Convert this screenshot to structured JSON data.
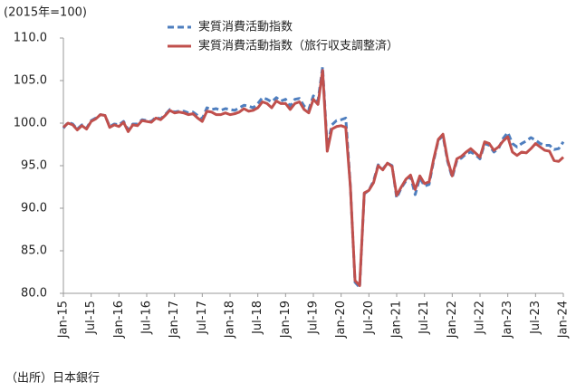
{
  "chart_data": {
    "type": "line",
    "unit_note": "(2015年=100)",
    "source": "（出所）日本銀行",
    "categories": [
      "Jan-15",
      null,
      null,
      null,
      null,
      null,
      "Jul-15",
      null,
      null,
      null,
      null,
      null,
      "Jan-16",
      null,
      null,
      null,
      null,
      null,
      "Jul-16",
      null,
      null,
      null,
      null,
      null,
      "Jan-17",
      null,
      null,
      null,
      null,
      null,
      "Jul-17",
      null,
      null,
      null,
      null,
      null,
      "Jan-18",
      null,
      null,
      null,
      null,
      null,
      "Jul-18",
      null,
      null,
      null,
      null,
      null,
      "Jan-19",
      null,
      null,
      null,
      null,
      null,
      "Jul-19",
      null,
      null,
      null,
      null,
      null,
      "Jan-20",
      null,
      null,
      null,
      null,
      null,
      "Jul-20",
      null,
      null,
      null,
      null,
      null,
      "Jan-21",
      null,
      null,
      null,
      null,
      null,
      "Jul-21",
      null,
      null,
      null,
      null,
      null,
      "Jan-22",
      null,
      null,
      null,
      null,
      null,
      "Jul-22",
      null,
      null,
      null,
      null,
      null,
      "Jan-23",
      null,
      null,
      null,
      null,
      null,
      "Jul-23",
      null,
      null,
      null,
      null,
      null,
      "Jan-24"
    ],
    "series": [
      {
        "name": "実質消費活動指数",
        "color": "#4f7fbf",
        "dashed": true,
        "values": [
          99.4,
          100.1,
          99.9,
          99.3,
          99.8,
          99.4,
          100.3,
          100.6,
          101.0,
          100.9,
          99.6,
          99.9,
          99.8,
          100.2,
          99.2,
          99.9,
          99.9,
          100.4,
          100.3,
          100.2,
          100.7,
          100.5,
          101.0,
          101.6,
          101.3,
          101.4,
          101.4,
          101.2,
          101.3,
          100.9,
          100.5,
          101.8,
          101.6,
          101.7,
          101.5,
          101.7,
          101.6,
          101.5,
          101.8,
          102.1,
          102.0,
          101.8,
          102.3,
          103.0,
          102.8,
          102.5,
          103.0,
          102.6,
          102.8,
          102.0,
          102.8,
          102.9,
          102.0,
          101.6,
          103.2,
          102.6,
          106.6,
          97.2,
          99.8,
          100.3,
          100.4,
          100.6,
          92.6,
          81.3,
          80.7,
          91.7,
          92.1,
          93.2,
          95.1,
          94.6,
          95.3,
          95.0,
          91.2,
          92.4,
          93.2,
          93.7,
          91.6,
          93.6,
          92.6,
          92.8,
          95.6,
          98.0,
          98.5,
          95.5,
          93.6,
          95.6,
          95.9,
          96.4,
          96.6,
          96.3,
          95.8,
          97.6,
          97.4,
          96.6,
          97.0,
          98.2,
          98.9,
          97.6,
          97.2,
          97.6,
          97.9,
          98.3,
          98.0,
          97.6,
          97.4,
          97.4,
          96.9,
          97.0,
          97.8
        ]
      },
      {
        "name": "実質消費活動指数（旅行収支調整済）",
        "color": "#c0504d",
        "dashed": false,
        "values": [
          99.5,
          100.0,
          99.8,
          99.2,
          99.7,
          99.3,
          100.2,
          100.5,
          101.0,
          100.9,
          99.5,
          99.8,
          99.6,
          100.1,
          99.0,
          99.8,
          99.7,
          100.3,
          100.2,
          100.1,
          100.6,
          100.4,
          100.9,
          101.5,
          101.2,
          101.3,
          101.2,
          101.0,
          101.1,
          100.6,
          100.2,
          101.4,
          101.3,
          101.0,
          101.0,
          101.2,
          101.0,
          101.1,
          101.3,
          101.7,
          101.4,
          101.5,
          101.8,
          102.5,
          102.3,
          101.8,
          102.6,
          102.3,
          102.3,
          101.6,
          102.3,
          102.5,
          101.6,
          101.2,
          102.8,
          102.2,
          106.2,
          96.7,
          99.3,
          99.6,
          99.7,
          99.5,
          92.5,
          81.5,
          80.9,
          91.8,
          92.1,
          93.0,
          95.0,
          94.5,
          95.3,
          94.9,
          91.5,
          92.5,
          93.4,
          93.9,
          92.2,
          93.8,
          92.9,
          93.1,
          95.8,
          98.1,
          98.7,
          95.7,
          93.8,
          95.8,
          96.1,
          96.6,
          97.0,
          96.5,
          96.0,
          97.8,
          97.6,
          96.8,
          97.2,
          97.9,
          98.4,
          96.6,
          96.2,
          96.6,
          96.5,
          97.0,
          97.6,
          97.2,
          96.8,
          96.7,
          95.6,
          95.5,
          96.0
        ]
      }
    ],
    "ylim": [
      80,
      110
    ],
    "yticks": [
      {
        "value": 80,
        "label": "80.0"
      },
      {
        "value": 85,
        "label": "85.0"
      },
      {
        "value": 90,
        "label": "90.0"
      },
      {
        "value": 95,
        "label": "95.0"
      },
      {
        "value": 100,
        "label": "100.0"
      },
      {
        "value": 105,
        "label": "105.0"
      },
      {
        "value": 110,
        "label": "110.0"
      }
    ],
    "grid": false,
    "legend": "top"
  }
}
